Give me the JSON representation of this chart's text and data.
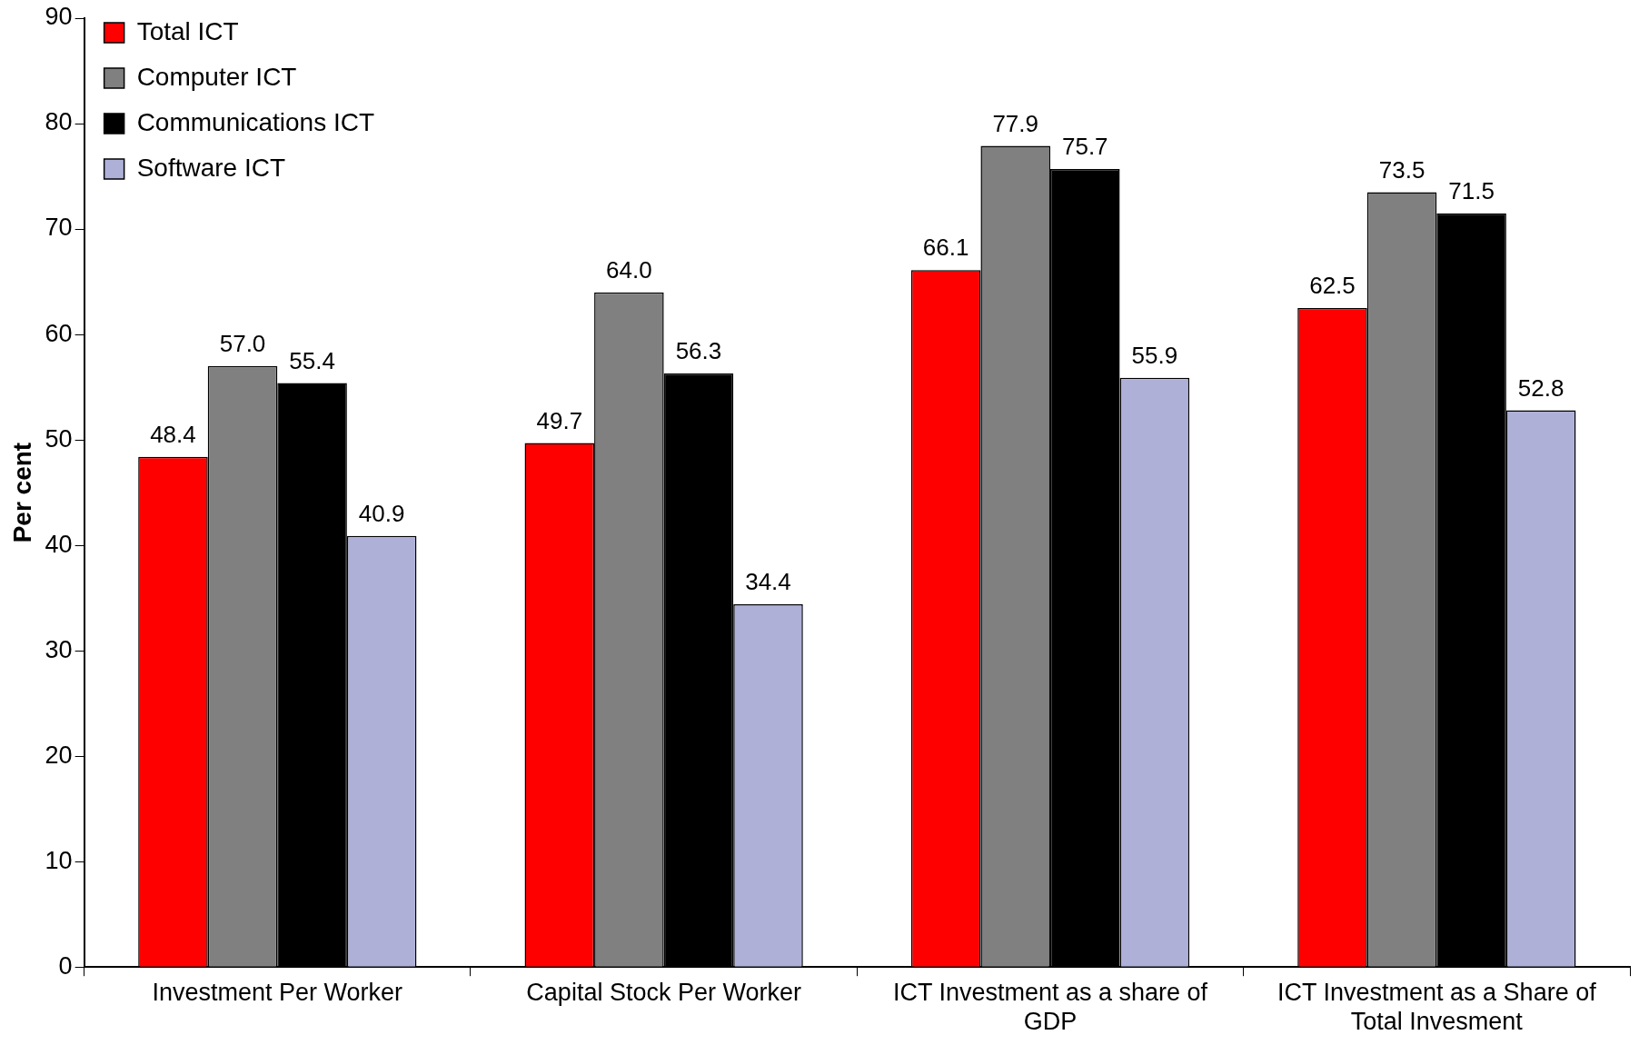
{
  "chart_data": {
    "type": "bar",
    "ylabel": "Per cent",
    "categories": [
      "Investment Per Worker",
      "Capital Stock Per Worker",
      "ICT Investment as a share of GDP",
      "ICT Investment as a Share of Total Invesment"
    ],
    "series": [
      {
        "name": "Total ICT",
        "color": "#ff0000",
        "values": [
          48.4,
          49.7,
          66.1,
          62.5
        ],
        "value_labels": [
          "48.4",
          "49.7",
          "66.1",
          "62.5"
        ]
      },
      {
        "name": "Computer ICT",
        "color": "#808080",
        "values": [
          57.0,
          64.0,
          77.9,
          73.5
        ],
        "value_labels": [
          "57.0",
          "64.0",
          "77.9",
          "73.5"
        ]
      },
      {
        "name": "Communications ICT",
        "color": "#000000",
        "values": [
          55.4,
          56.3,
          75.7,
          71.5
        ],
        "value_labels": [
          "55.4",
          "56.3",
          "75.7",
          "71.5"
        ]
      },
      {
        "name": "Software ICT",
        "color": "#aeb0d8",
        "values": [
          40.9,
          34.4,
          55.9,
          52.8
        ],
        "value_labels": [
          "40.9",
          "34.4",
          "55.9",
          "52.8"
        ]
      }
    ],
    "ylim": [
      0,
      90
    ],
    "yticks": [
      0,
      10,
      20,
      30,
      40,
      50,
      60,
      70,
      80,
      90
    ],
    "grid": false,
    "legend": "top left"
  }
}
